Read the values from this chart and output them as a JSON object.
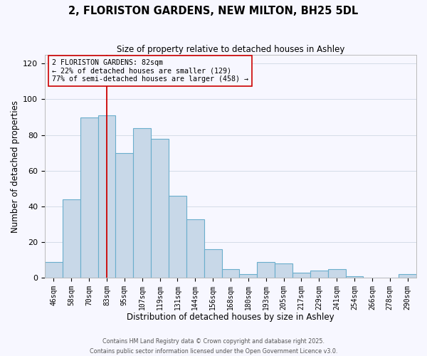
{
  "title": "2, FLORISTON GARDENS, NEW MILTON, BH25 5DL",
  "subtitle": "Size of property relative to detached houses in Ashley",
  "xlabel": "Distribution of detached houses by size in Ashley",
  "ylabel": "Number of detached properties",
  "bar_color": "#c8d8e8",
  "bar_edge_color": "#6aaecc",
  "categories": [
    "46sqm",
    "58sqm",
    "70sqm",
    "83sqm",
    "95sqm",
    "107sqm",
    "119sqm",
    "131sqm",
    "144sqm",
    "156sqm",
    "168sqm",
    "180sqm",
    "193sqm",
    "205sqm",
    "217sqm",
    "229sqm",
    "241sqm",
    "254sqm",
    "266sqm",
    "278sqm",
    "290sqm"
  ],
  "values": [
    9,
    44,
    90,
    91,
    70,
    84,
    78,
    46,
    33,
    16,
    5,
    2,
    9,
    8,
    3,
    4,
    5,
    1,
    0,
    0,
    2
  ],
  "ylim": [
    0,
    125
  ],
  "yticks": [
    0,
    20,
    40,
    60,
    80,
    100,
    120
  ],
  "vline_x_index": 3,
  "vline_color": "#cc0000",
  "annotation_title": "2 FLORISTON GARDENS: 82sqm",
  "annotation_line1": "← 22% of detached houses are smaller (129)",
  "annotation_line2": "77% of semi-detached houses are larger (458) →",
  "annotation_box_edge": "#cc0000",
  "footer1": "Contains HM Land Registry data © Crown copyright and database right 2025.",
  "footer2": "Contains public sector information licensed under the Open Government Licence v3.0.",
  "background_color": "#f7f7ff",
  "grid_color": "#d4dce8"
}
